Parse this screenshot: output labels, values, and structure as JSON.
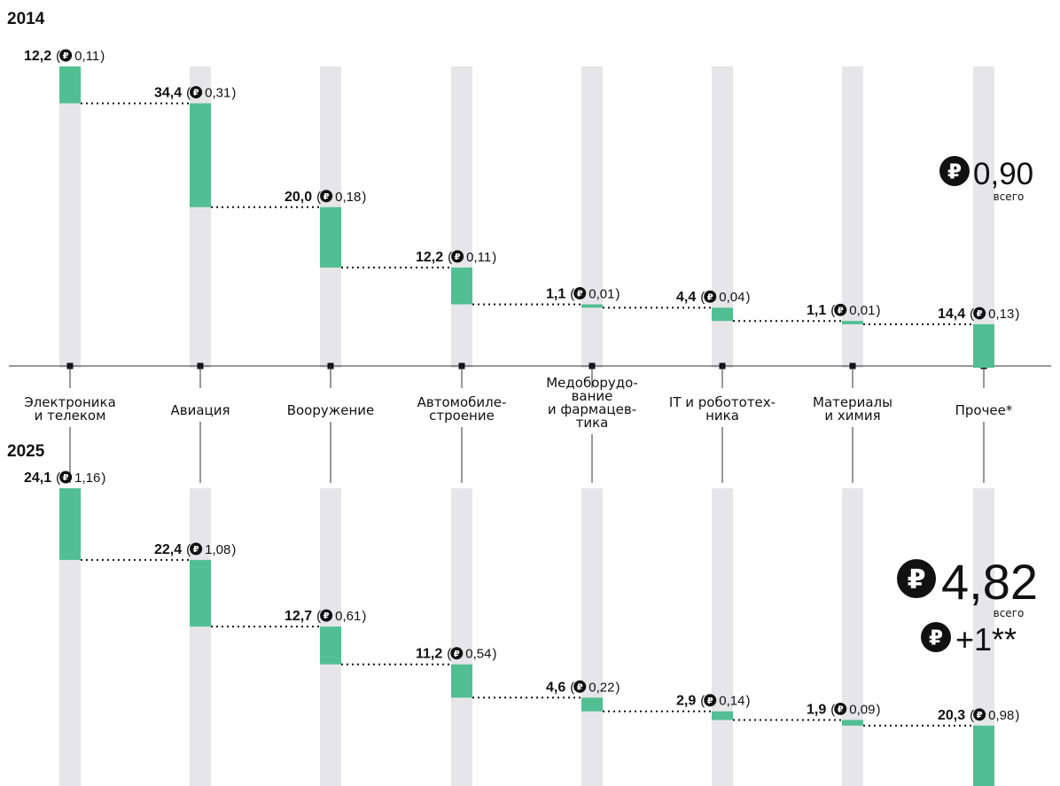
{
  "colors": {
    "bar": "#52bf92",
    "track": "#e6e6e8",
    "text": "#111111",
    "axis": "#333333"
  },
  "icons": {
    "ruble": "ruble-icon"
  },
  "chart_data": {
    "type": "bar",
    "subtype": "waterfall",
    "categories": [
      [
        "Электроника",
        "и телеком"
      ],
      [
        "Авиация"
      ],
      [
        "Вооружение"
      ],
      [
        "Автомобиле-",
        "строение"
      ],
      [
        "Медоборудо-",
        "вание",
        "и фармацев-",
        "тика"
      ],
      [
        "IT и робототех-",
        "ника"
      ],
      [
        "Материалы",
        "и химия"
      ],
      [
        "Прочее*"
      ]
    ],
    "panels": [
      {
        "year": "2014",
        "pct_labels": [
          "12,2",
          "34,4",
          "20,0",
          "12,2",
          "1,1",
          "4,4",
          "1,1",
          "14,4"
        ],
        "rub_labels": [
          "0,11",
          "0,31",
          "0,18",
          "0,11",
          "0,01",
          "0,04",
          "0,01",
          "0,13"
        ],
        "values": [
          12.2,
          34.4,
          20.0,
          12.2,
          1.1,
          4.4,
          1.1,
          14.4
        ],
        "total": {
          "value": "0,90",
          "label": "всего"
        },
        "extra": null
      },
      {
        "year": "2025",
        "pct_labels": [
          "24,1",
          "22,4",
          "12,7",
          "11,2",
          "4,6",
          "2,9",
          "1,9",
          "20,3"
        ],
        "rub_labels": [
          "1,16",
          "1,08",
          "0,61",
          "0,54",
          "0,22",
          "0,14",
          "0,09",
          "0,98"
        ],
        "values": [
          24.1,
          22.4,
          12.7,
          11.2,
          4.6,
          2.9,
          1.9,
          20.3
        ],
        "total": {
          "value": "4,82",
          "label": "всего"
        },
        "extra": "+1**"
      }
    ]
  }
}
